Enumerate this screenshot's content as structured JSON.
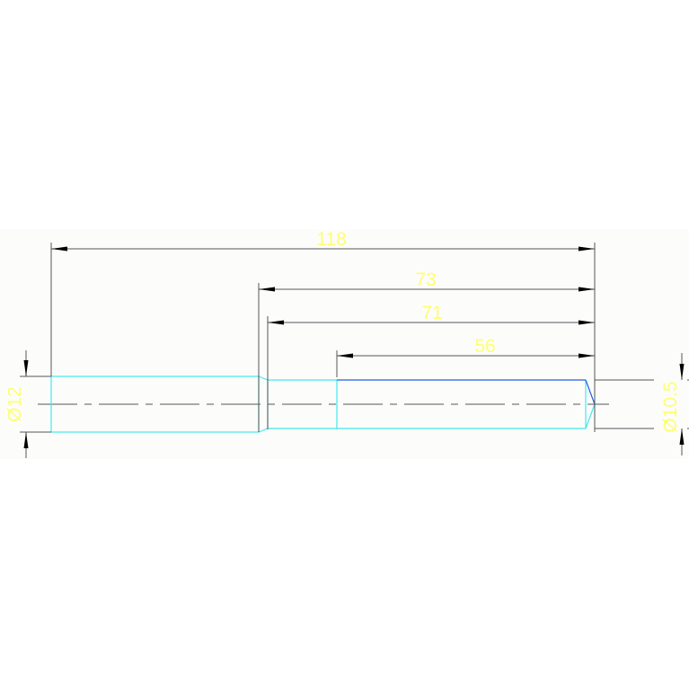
{
  "drawing": {
    "colors": {
      "background": "#fcfdfb",
      "part_outline": "#40e8f0",
      "edge_highlight": "#2060e0",
      "dimension_text": "#ffff70",
      "dimension_lines": "#555555"
    },
    "dimensions": {
      "overall_length": "118",
      "length_73": "73",
      "length_71": "71",
      "length_56": "56",
      "diameter_large": "Ø12",
      "diameter_small": "Ø10.5"
    }
  }
}
